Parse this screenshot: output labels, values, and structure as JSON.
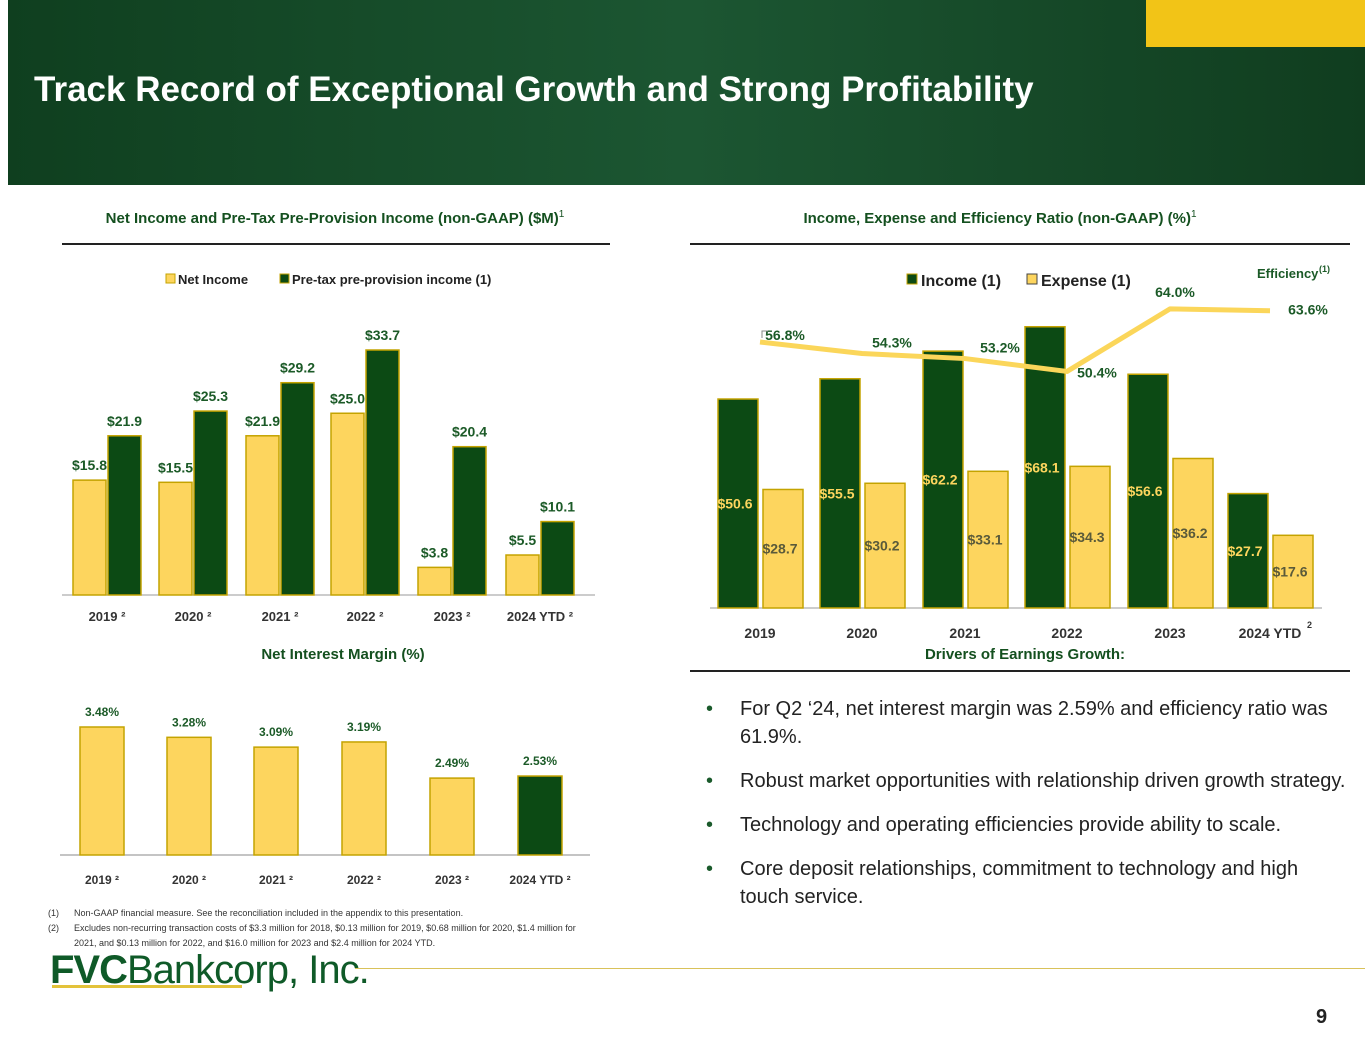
{
  "header": {
    "title": "Track Record of Exceptional Growth and Strong Profitability",
    "page_number": "9"
  },
  "colors": {
    "dark_green": "#0c4a14",
    "yellow": "#fdd55e",
    "yellow_outline": "#c4a300",
    "line": "#fbd65a",
    "label_green": "#1b5a27"
  },
  "chart_data": [
    {
      "type": "bar",
      "title": "Net Income and Pre-Tax Pre-Provision Income (non-GAAP) ($M)",
      "title_sup": "1",
      "categories": [
        "2019 ²",
        "2020 ²",
        "2021 ²",
        "2022 ²",
        "2023 ²",
        "2024 YTD ²"
      ],
      "series": [
        {
          "name": "Net Income",
          "values": [
            15.8,
            15.5,
            21.9,
            25.0,
            3.8,
            5.5
          ],
          "labels": [
            "$15.8",
            "$15.5",
            "$21.9",
            "$25.0",
            "$3.8",
            "$5.5"
          ]
        },
        {
          "name": "Pre-tax pre-provision income (1)",
          "values": [
            21.9,
            25.3,
            29.2,
            33.7,
            20.4,
            10.1
          ],
          "labels": [
            "$21.9",
            "$25.3",
            "$29.2",
            "$33.7",
            "$20.4",
            "$10.1"
          ]
        }
      ],
      "legend": "top",
      "grid": false
    },
    {
      "type": "bar",
      "title": "Net Interest Margin (%)",
      "categories": [
        "2019 ²",
        "2020 ²",
        "2021 ²",
        "2022 ²",
        "2023 ²",
        "2024 YTD ²"
      ],
      "values": [
        3.48,
        3.28,
        3.09,
        3.19,
        2.49,
        2.53
      ],
      "labels": [
        "3.48%",
        "3.28%",
        "3.09%",
        "3.19%",
        "2.49%",
        "2.53%"
      ],
      "ylim": [
        1.0,
        3.6
      ],
      "grid": false
    },
    {
      "type": "bar",
      "title": "Income, Expense and Efficiency Ratio (non-GAAP) (%)",
      "title_sup": "1",
      "categories": [
        "2019",
        "2020",
        "2021",
        "2022",
        "2023",
        "2024 YTD"
      ],
      "last_category_sup": "2",
      "series": [
        {
          "name": "Income (1)",
          "values": [
            50.6,
            55.5,
            62.2,
            68.1,
            56.6,
            27.7
          ],
          "labels": [
            "$50.6",
            "$55.5",
            "$62.2",
            "$68.1",
            "$56.6",
            "$27.7"
          ]
        },
        {
          "name": "Expense (1)",
          "values": [
            28.7,
            30.2,
            33.1,
            34.3,
            36.2,
            17.6
          ],
          "labels": [
            "$28.7",
            "$30.2",
            "$33.1",
            "$34.3",
            "$36.2",
            "$17.6"
          ]
        }
      ],
      "line_series": {
        "name": "Efficiency",
        "name_sup": "(1)",
        "type": "line",
        "values": [
          56.8,
          54.3,
          53.2,
          50.4,
          64.0,
          63.6
        ],
        "labels": [
          "56.8%",
          "54.3%",
          "53.2%",
          "50.4%",
          "64.0%",
          "63.6%"
        ]
      },
      "legend": "top",
      "grid": false
    }
  ],
  "drivers": {
    "title": "Drivers of Earnings Growth:",
    "bullets": [
      "For Q2 ‘24, net interest margin was 2.59% and efficiency ratio was 61.9%.",
      "Robust market opportunities with relationship driven growth strategy.",
      "Technology and operating efficiencies provide ability to scale.",
      "Core deposit relationships, commitment to technology and high touch service."
    ]
  },
  "footnotes": [
    {
      "num": "(1)",
      "text": "Non-GAAP financial measure. See the reconciliation included in the appendix to this presentation."
    },
    {
      "num": "(2)",
      "text": "Excludes non-recurring transaction costs of $3.3 million for 2018, $0.13 million for 2019,  $0.68 million for 2020, $1.4 million for 2021, and $0.13 million for 2022, and $16.0 million for 2023 and $2.4 million for 2024 YTD."
    }
  ],
  "logo": {
    "bold": "FVC",
    "rest": "Bankcorp, Inc."
  }
}
